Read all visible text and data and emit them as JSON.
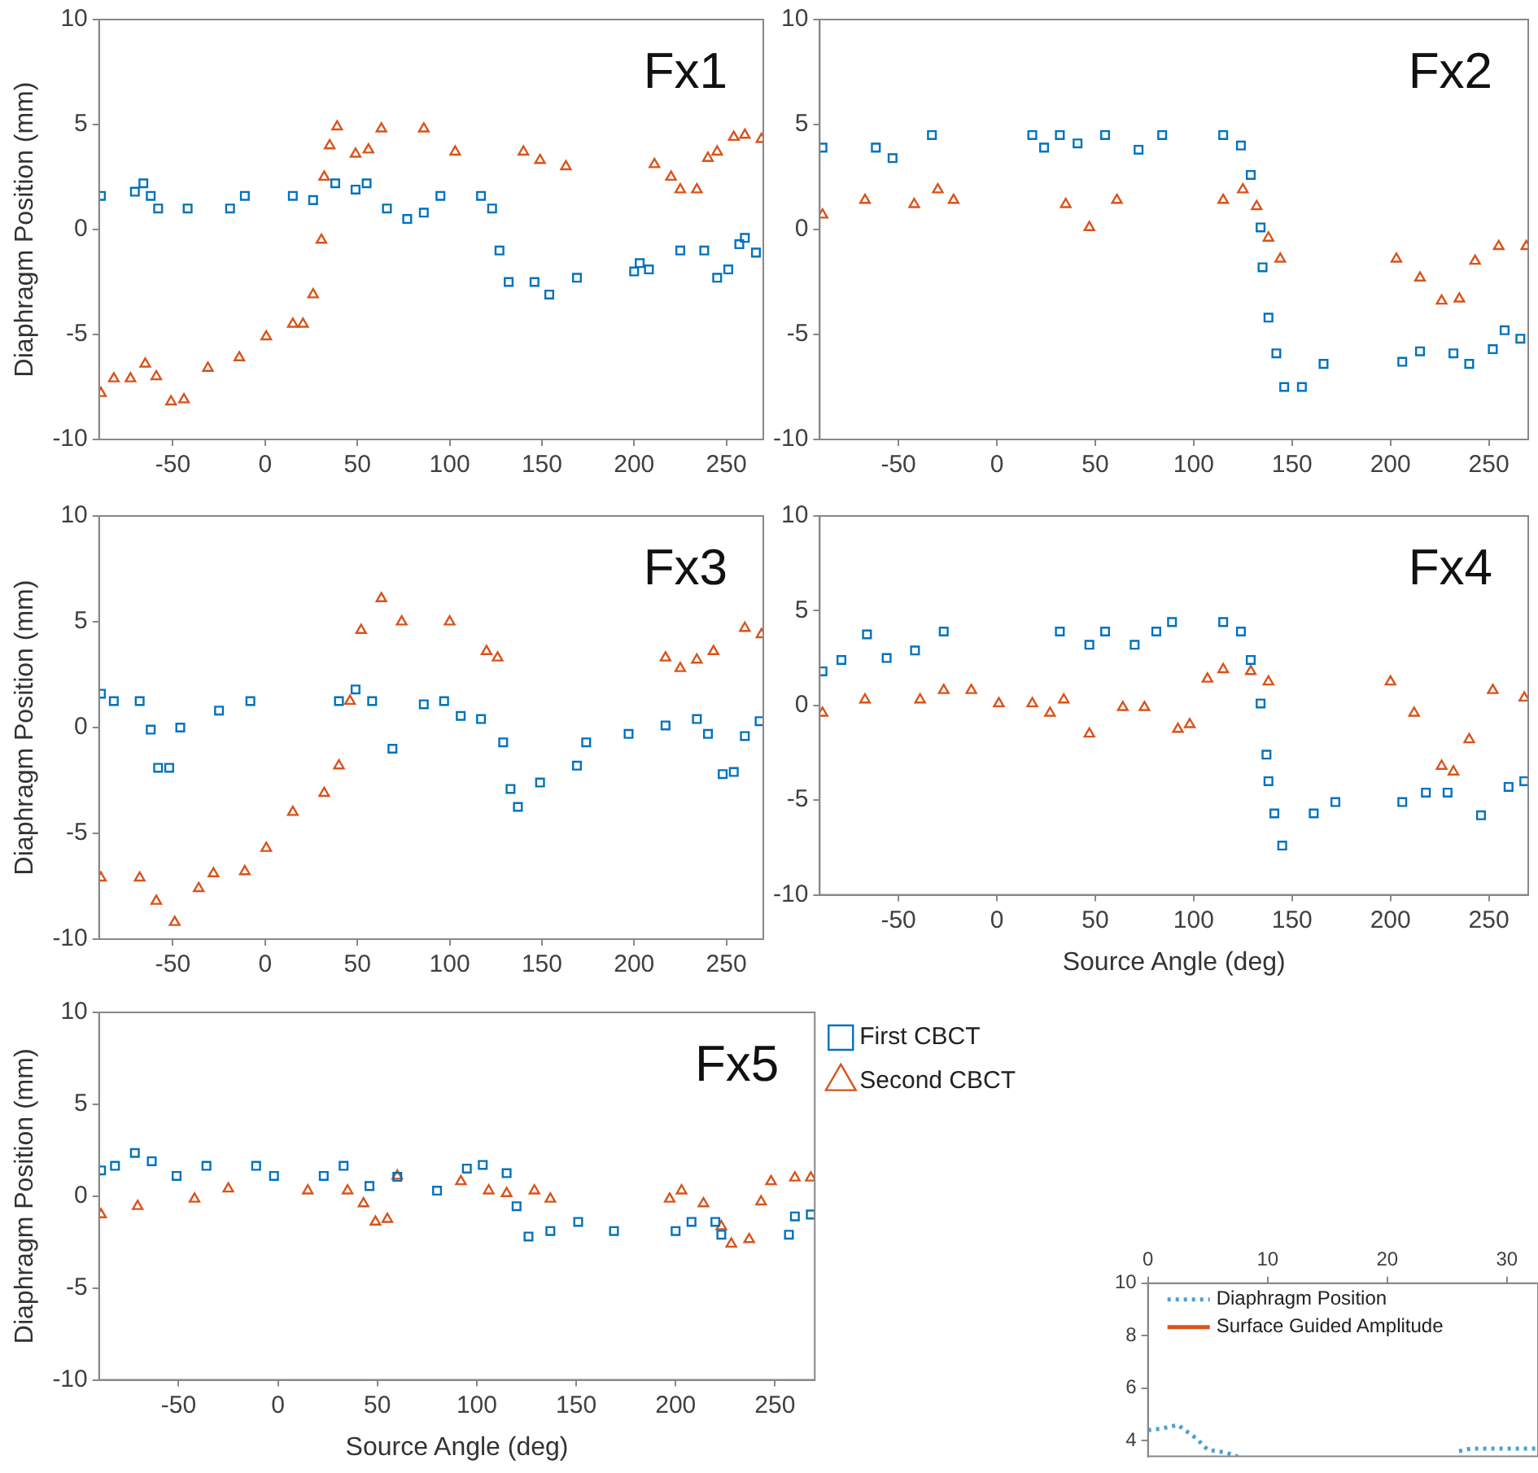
{
  "chart_data": [
    {
      "type": "scatter",
      "ylabel": "Diaphragm Position (mm)",
      "annotations": [
        "Fx1"
      ],
      "xlim": [
        -90,
        270
      ],
      "ylim": [
        -10,
        10
      ],
      "xticks": [
        -50,
        0,
        50,
        100,
        150,
        200,
        250
      ],
      "yticks": [
        -10,
        -5,
        0,
        5,
        10
      ],
      "grid": false,
      "legend": false,
      "series": [
        {
          "color": "#0072bd",
          "marker": "square",
          "x": [
            -89,
            -70.6,
            -66,
            -62,
            -58,
            -42,
            -19,
            -11,
            15,
            26,
            38,
            49,
            55,
            66,
            77,
            86,
            95,
            117,
            123,
            127,
            132,
            146,
            154,
            169,
            200,
            203,
            208,
            225,
            238,
            245,
            251,
            257,
            260,
            266
          ],
          "values": [
            1.6,
            1.8,
            2.2,
            1.6,
            1.0,
            1.0,
            1.0,
            1.6,
            1.6,
            1.4,
            2.2,
            1.9,
            2.2,
            1.0,
            0.5,
            0.8,
            1.6,
            1.6,
            1.0,
            -1.0,
            -2.5,
            -2.5,
            -3.1,
            -2.3,
            -2.0,
            -1.6,
            -1.9,
            -1.0,
            -1.0,
            -2.3,
            -1.9,
            -0.7,
            -0.4,
            -1.1
          ]
        },
        {
          "color": "#d95319",
          "marker": "triangle",
          "x": [
            -89,
            -82,
            -73,
            -65,
            -59,
            -51,
            -44,
            -31,
            -14,
            0.6,
            15,
            20.5,
            26,
            30.5,
            32,
            35,
            39,
            49,
            56,
            63,
            86,
            103,
            140,
            149,
            163,
            211,
            220,
            225,
            234,
            240,
            245,
            254,
            260,
            269
          ],
          "values": [
            -7.8,
            -7.1,
            -7.1,
            -6.4,
            -7.0,
            -8.2,
            -8.1,
            -6.6,
            -6.1,
            -5.1,
            -4.5,
            -4.5,
            -3.1,
            -0.5,
            2.5,
            4.0,
            4.9,
            3.6,
            3.8,
            4.8,
            4.8,
            3.7,
            3.7,
            3.3,
            3.0,
            3.1,
            2.5,
            1.9,
            1.9,
            3.4,
            3.7,
            4.4,
            4.5,
            4.3
          ]
        }
      ]
    },
    {
      "type": "scatter",
      "annotations": [
        "Fx2"
      ],
      "xlim": [
        -90,
        270
      ],
      "ylim": [
        -10,
        10
      ],
      "xticks": [
        -50,
        0,
        50,
        100,
        150,
        200,
        250
      ],
      "yticks": [
        -10,
        -5,
        0,
        5,
        10
      ],
      "grid": false,
      "legend": false,
      "series": [
        {
          "color": "#0072bd",
          "marker": "square",
          "x": [
            -88.6,
            -61.5,
            -53,
            -33,
            18,
            24,
            32,
            41,
            55,
            72,
            84,
            115,
            124,
            129,
            134,
            135,
            138,
            142,
            146,
            155,
            166,
            206,
            215,
            232,
            240,
            252,
            258,
            266
          ],
          "values": [
            3.9,
            3.9,
            3.4,
            4.5,
            4.5,
            3.9,
            4.5,
            4.1,
            4.5,
            3.8,
            4.5,
            4.5,
            4.0,
            2.6,
            0.1,
            -1.8,
            -4.2,
            -5.9,
            -7.5,
            -7.5,
            -6.4,
            -6.3,
            -5.8,
            -5.9,
            -6.4,
            -5.7,
            -4.8,
            -5.2
          ]
        },
        {
          "color": "#d95319",
          "marker": "triangle",
          "x": [
            -88.6,
            -67,
            -42,
            -30,
            -22,
            35,
            47,
            61,
            115,
            125,
            132,
            138,
            144,
            203,
            215,
            226,
            235,
            243,
            255,
            269
          ],
          "values": [
            0.7,
            1.4,
            1.2,
            1.9,
            1.4,
            1.2,
            0.1,
            1.4,
            1.4,
            1.9,
            1.1,
            -0.4,
            -1.4,
            -1.4,
            -2.3,
            -3.4,
            -3.3,
            -1.5,
            -0.8,
            -0.8
          ]
        }
      ]
    },
    {
      "type": "scatter",
      "ylabel": "Diaphragm Position (mm)",
      "annotations": [
        "Fx3"
      ],
      "xlim": [
        -90,
        270
      ],
      "ylim": [
        -10,
        10
      ],
      "xticks": [
        -50,
        0,
        50,
        100,
        150,
        200,
        250
      ],
      "yticks": [
        -10,
        -5,
        0,
        5,
        10
      ],
      "grid": false,
      "legend": false,
      "series": [
        {
          "color": "#0072bd",
          "marker": "square",
          "x": [
            -89,
            -82,
            -68,
            -62,
            -58,
            -52,
            -46,
            -25,
            -8,
            40,
            49,
            58,
            69,
            86,
            97,
            106,
            117,
            129,
            133,
            137,
            149,
            169,
            174,
            197,
            217,
            234,
            240,
            248,
            254,
            260,
            268
          ],
          "values": [
            1.6,
            1.25,
            1.25,
            -0.1,
            -1.9,
            -1.9,
            0,
            0.8,
            1.25,
            1.25,
            1.8,
            1.25,
            -1.0,
            1.1,
            1.25,
            0.55,
            0.4,
            -0.7,
            -2.9,
            -3.75,
            -2.6,
            -1.8,
            -0.7,
            -0.3,
            0.1,
            0.4,
            -0.3,
            -2.2,
            -2.1,
            -0.4,
            0.3
          ]
        },
        {
          "color": "#d95319",
          "marker": "triangle",
          "x": [
            -89,
            -68,
            -59,
            -49,
            -36,
            -28,
            -11,
            0.6,
            15,
            32,
            40,
            46,
            52,
            63,
            74,
            100,
            120,
            126,
            217,
            225,
            234,
            243,
            260,
            269
          ],
          "values": [
            -7.1,
            -7.1,
            -8.2,
            -9.2,
            -7.6,
            -6.9,
            -6.8,
            -5.7,
            -4.0,
            -3.1,
            -1.8,
            1.25,
            4.6,
            6.1,
            5.0,
            5.0,
            3.6,
            3.3,
            3.3,
            2.8,
            3.2,
            3.6,
            4.7,
            4.4
          ]
        }
      ]
    },
    {
      "type": "scatter",
      "xlabel": "Source Angle (deg)",
      "annotations": [
        "Fx4"
      ],
      "xlim": [
        -90,
        270
      ],
      "ylim": [
        -10,
        10
      ],
      "xticks": [
        -50,
        0,
        50,
        100,
        150,
        200,
        250
      ],
      "yticks": [
        -10,
        -5,
        0,
        5,
        10
      ],
      "grid": false,
      "legend": false,
      "series": [
        {
          "color": "#0072bd",
          "marker": "square",
          "x": [
            -88.6,
            -79,
            -66,
            -56,
            -41.6,
            -27,
            32,
            47,
            55,
            70,
            81,
            89,
            115,
            124,
            129,
            134,
            137,
            138,
            141,
            145,
            161,
            172,
            206,
            218,
            229,
            246,
            260,
            268
          ],
          "values": [
            1.8,
            2.4,
            3.75,
            2.5,
            2.9,
            3.9,
            3.9,
            3.2,
            3.9,
            3.2,
            3.9,
            4.4,
            4.4,
            3.9,
            2.4,
            0.1,
            -2.6,
            -4.0,
            -5.7,
            -7.4,
            -5.7,
            -5.1,
            -5.1,
            -4.6,
            -4.6,
            -5.8,
            -4.3,
            -4.0
          ]
        },
        {
          "color": "#d95319",
          "marker": "triangle",
          "x": [
            -88.6,
            -67,
            -39,
            -27,
            -13,
            1,
            18,
            27,
            34,
            47,
            64,
            75,
            92,
            98,
            107,
            115,
            129,
            138,
            200,
            212,
            226,
            232,
            240,
            252,
            268
          ],
          "values": [
            -0.4,
            0.3,
            0.3,
            0.8,
            0.8,
            0.1,
            0.1,
            -0.4,
            0.3,
            -1.5,
            -0.1,
            -0.1,
            -1.25,
            -1.0,
            1.4,
            1.9,
            1.8,
            1.25,
            1.25,
            -0.4,
            -3.2,
            -3.5,
            -1.8,
            0.8,
            0.4
          ]
        }
      ]
    },
    {
      "type": "scatter",
      "xlabel": "Source Angle (deg)",
      "ylabel": "Diaphragm Position (mm)",
      "annotations": [
        "Fx5"
      ],
      "xlim": [
        -90,
        270
      ],
      "ylim": [
        -10,
        10
      ],
      "xticks": [
        -50,
        0,
        50,
        100,
        150,
        200,
        250
      ],
      "yticks": [
        -10,
        -5,
        0,
        5,
        10
      ],
      "grid": false,
      "legend": "right",
      "series": [
        {
          "name": "First CBCT",
          "color": "#0072bd",
          "marker": "square",
          "x": [
            -89,
            -82,
            -72,
            -63.5,
            -51,
            -36,
            -11,
            -2,
            23,
            33,
            46,
            60,
            80,
            95,
            103,
            115,
            120,
            126,
            137,
            151,
            169,
            200,
            208,
            220,
            223,
            257,
            260,
            268
          ],
          "values": [
            1.4,
            1.65,
            2.35,
            1.9,
            1.1,
            1.65,
            1.65,
            1.1,
            1.1,
            1.65,
            0.55,
            1.05,
            0.3,
            1.5,
            1.7,
            1.25,
            -0.55,
            -2.2,
            -1.9,
            -1.4,
            -1.9,
            -1.9,
            -1.4,
            -1.4,
            -2.1,
            -2.1,
            -1.1,
            -1.0
          ]
        },
        {
          "name": "Second CBCT",
          "color": "#d95319",
          "marker": "triangle",
          "x": [
            -89,
            -70.6,
            -42,
            -25,
            15,
            35,
            43,
            49,
            55,
            60,
            92,
            106,
            115,
            129,
            137,
            197,
            203,
            214,
            223,
            228,
            237,
            243,
            248,
            260,
            268
          ],
          "values": [
            -1.0,
            -0.55,
            -0.15,
            0.4,
            0.3,
            0.3,
            -0.4,
            -1.4,
            -1.25,
            1.1,
            0.8,
            0.3,
            0.15,
            0.3,
            -0.15,
            -0.15,
            0.3,
            -0.4,
            -1.65,
            -2.6,
            -2.35,
            -0.3,
            0.8,
            1.0,
            1.0
          ]
        }
      ]
    },
    {
      "type": "line",
      "xlim": [
        0,
        32.6
      ],
      "xticks": [
        0,
        10,
        20,
        30
      ],
      "ylim": [
        3.4,
        10
      ],
      "yticks": [
        4,
        6,
        8,
        10
      ],
      "grid": false,
      "legend": "top left",
      "series": [
        {
          "name": "Diaphragm Position",
          "color": "#4d9fd6",
          "line_style": "dotted",
          "x": [
            0,
            1,
            2.5,
            4,
            5,
            6.5,
            7.5,
            17,
            26,
            27,
            32.6
          ],
          "values": [
            4.4,
            4.45,
            4.6,
            4.1,
            3.65,
            3.55,
            3.4,
            null,
            3.6,
            3.7,
            3.7
          ]
        },
        {
          "name": "Surface Guided Amplitude",
          "color": "#d95319",
          "line_style": "solid"
        }
      ]
    }
  ]
}
